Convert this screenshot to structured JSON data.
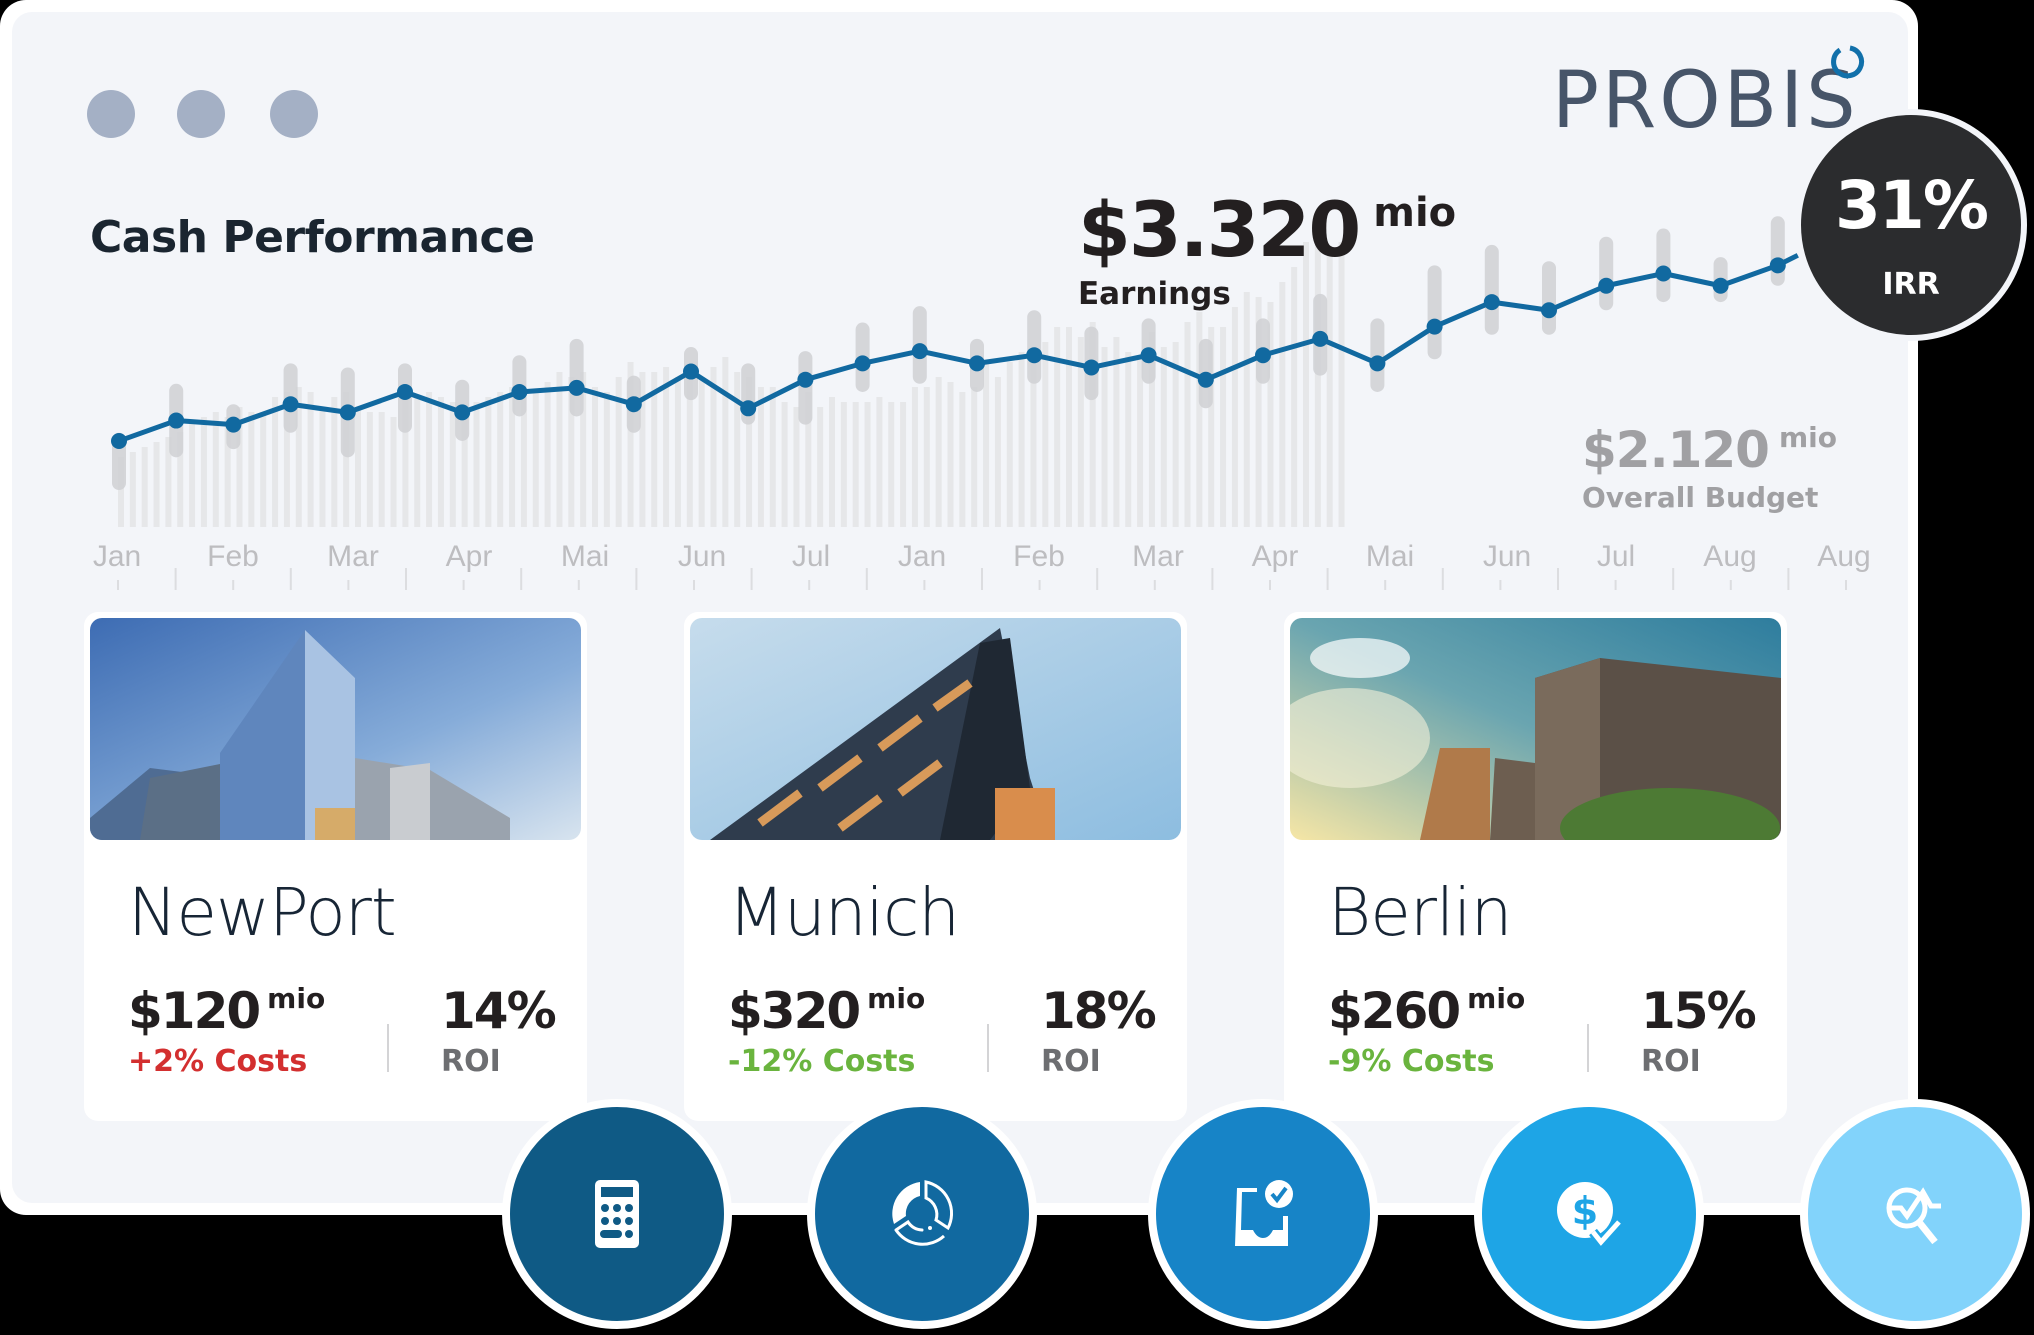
{
  "window": {
    "dots": 3
  },
  "brand": {
    "name": "PROBIS",
    "colors": {
      "text": "#475569",
      "ring": "#1170aa"
    }
  },
  "header": {
    "title": "Cash Performance",
    "earnings": {
      "value": "$3.320",
      "unit": "mio",
      "label": "Earnings"
    },
    "budget": {
      "value": "$2.120",
      "unit": "mio",
      "label": "Overall Budget"
    }
  },
  "irr": {
    "value": "31%",
    "label": "IRR",
    "color": "#2b2c2e"
  },
  "chart_data": {
    "type": "line",
    "title": "Cash Performance",
    "xlabel": "",
    "ylabel": "",
    "grid": false,
    "x_tick_labels": [
      "Jan",
      "Feb",
      "Mar",
      "Apr",
      "Mai",
      "Jun",
      "Jul",
      "Jan",
      "Feb",
      "Mar",
      "Apr",
      "Mai",
      "Jun",
      "Jul",
      "Aug",
      "Aug"
    ],
    "series": [
      {
        "name": "Earnings",
        "color": "#1169a0",
        "values": [
          12,
          17,
          16,
          21,
          19,
          24,
          19,
          24,
          25,
          21,
          29,
          20,
          27,
          31,
          34,
          31,
          33,
          30,
          33,
          27,
          33,
          37,
          31,
          40,
          46,
          44,
          50,
          53,
          50,
          55
        ],
        "range_low": [
          0,
          8,
          10,
          14,
          8,
          14,
          12,
          18,
          18,
          14,
          22,
          16,
          16,
          24,
          26,
          24,
          26,
          22,
          26,
          20,
          26,
          28,
          24,
          32,
          38,
          38,
          44,
          46,
          46,
          50
        ],
        "range_high": [
          14,
          26,
          21,
          31,
          30,
          31,
          27,
          33,
          37,
          28,
          35,
          31,
          34,
          41,
          45,
          37,
          44,
          40,
          42,
          37,
          42,
          48,
          42,
          55,
          60,
          56,
          62,
          64,
          57,
          67
        ]
      },
      {
        "name": "Overall Budget",
        "color": "#e6e7e9",
        "type": "bar",
        "values": [
          14,
          15,
          16,
          17,
          18,
          19,
          21,
          22,
          23,
          22,
          24,
          23,
          23,
          26,
          27,
          28,
          27,
          24,
          26,
          27,
          24,
          23,
          23,
          22,
          26,
          26,
          27,
          26,
          25,
          24,
          25,
          26,
          27,
          28,
          26,
          27,
          29,
          31,
          30,
          31,
          28,
          27,
          30,
          33,
          31,
          31,
          32,
          30,
          31,
          30,
          32,
          34,
          31,
          30,
          28,
          28,
          25,
          24,
          27,
          24,
          26,
          25,
          25,
          25,
          26,
          25,
          25,
          28,
          28,
          30,
          29,
          27,
          28,
          33,
          30,
          33,
          35,
          34,
          37,
          40,
          40,
          38,
          41,
          36,
          38,
          35,
          34,
          39,
          36,
          37,
          41,
          43,
          40,
          40,
          44,
          47,
          46,
          45,
          49,
          52,
          57,
          57,
          56,
          57
        ]
      }
    ],
    "annotations": [
      "$3.320 mio Earnings",
      "$2.120 mio Overall Budget"
    ]
  },
  "axis": {
    "labels": [
      "Jan",
      "Feb",
      "Mar",
      "Apr",
      "Mai",
      "Jun",
      "Jul",
      "Jan",
      "Feb",
      "Mar",
      "Apr",
      "Mai",
      "Jun",
      "Jul",
      "Aug",
      "Aug"
    ]
  },
  "cards": [
    {
      "name": "NewPort",
      "amount": "$120",
      "unit": "mio",
      "delta": "+2% Costs",
      "delta_color": "#d32f2f",
      "roi": "14%",
      "roi_label": "ROI"
    },
    {
      "name": "Munich",
      "amount": "$320",
      "unit": "mio",
      "delta": "-12% Costs",
      "delta_color": "#6ab43e",
      "roi": "18%",
      "roi_label": "ROI"
    },
    {
      "name": "Berlin",
      "amount": "$260",
      "unit": "mio",
      "delta": "-9% Costs",
      "delta_color": "#6ab43e",
      "roi": "15%",
      "roi_label": "ROI"
    }
  ],
  "actions": [
    {
      "icon": "calculator-icon",
      "color": "#0f5a85"
    },
    {
      "icon": "donut-chart-icon",
      "color": "#1169a0"
    },
    {
      "icon": "inbox-check-icon",
      "color": "#1784c7"
    },
    {
      "icon": "dollar-check-icon",
      "color": "#1ea5e6"
    },
    {
      "icon": "search-analytics-icon",
      "color": "#82d3fb"
    }
  ]
}
